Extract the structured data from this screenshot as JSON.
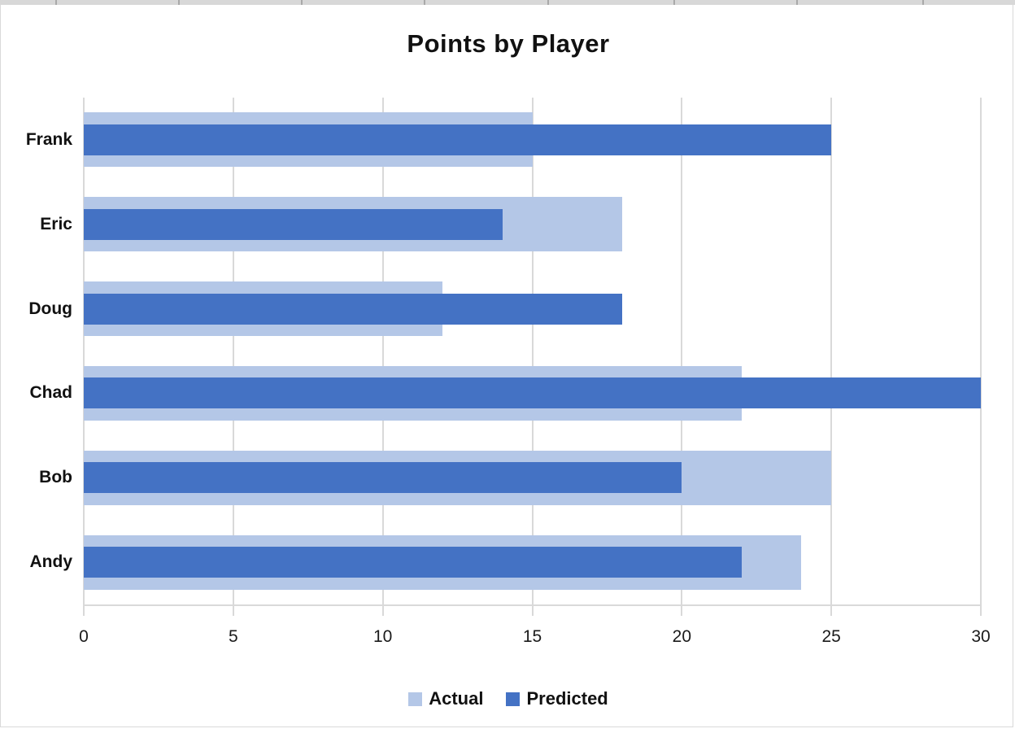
{
  "title": "Points by Player",
  "chart_data": {
    "type": "bar",
    "orientation": "horizontal",
    "title": "Points by Player",
    "xlabel": "",
    "ylabel": "",
    "categories": [
      "Frank",
      "Eric",
      "Doug",
      "Chad",
      "Bob",
      "Andy"
    ],
    "categories_note": "listed top-to-bottom as displayed",
    "series": [
      {
        "name": "Actual",
        "color": "#B4C7E7",
        "values": [
          15,
          18,
          12,
          22,
          25,
          24
        ]
      },
      {
        "name": "Predicted",
        "color": "#4472C4",
        "values": [
          25,
          14,
          18,
          30,
          20,
          22
        ]
      }
    ],
    "xlim": [
      0,
      30
    ],
    "x_ticks": [
      0,
      5,
      10,
      15,
      20,
      25,
      30
    ],
    "grid": true,
    "gridline_color": "#D9D9D9",
    "legend_position": "bottom"
  },
  "legend": {
    "items": [
      {
        "label": "Actual",
        "color": "#B4C7E7"
      },
      {
        "label": "Predicted",
        "color": "#4472C4"
      }
    ]
  }
}
